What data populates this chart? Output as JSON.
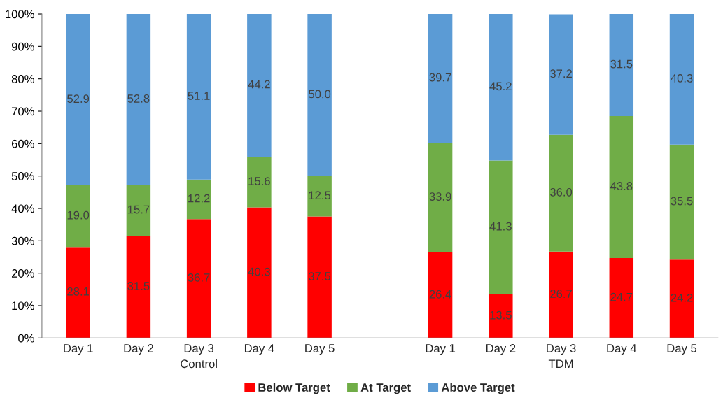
{
  "chart_data": {
    "type": "bar",
    "stacked": true,
    "categories": [
      "Day 1",
      "Day 2",
      "Day 3",
      "Day 4",
      "Day 5",
      null,
      "Day 1",
      "Day 2",
      "Day 3",
      "Day 4",
      "Day 5"
    ],
    "series": [
      {
        "name": "Below Target",
        "color": "#ff0000",
        "values": [
          28.1,
          31.5,
          36.7,
          40.3,
          37.5,
          null,
          26.4,
          13.5,
          26.7,
          24.7,
          24.2
        ],
        "value_labels": [
          "28.1",
          "31.5",
          "36.7",
          "40.3",
          "37.5",
          null,
          "26.4",
          "13.5",
          "26.7",
          "24.7",
          "24.2"
        ]
      },
      {
        "name": "At Target",
        "color": "#70ad47",
        "values": [
          19.0,
          15.7,
          12.2,
          15.6,
          12.5,
          null,
          33.9,
          41.3,
          36.0,
          43.8,
          35.5
        ],
        "value_labels": [
          "19.0",
          "15.7",
          "12.2",
          "15.6",
          "12.5",
          null,
          "33.9",
          "41.3",
          "36.0",
          "43.8",
          "35.5"
        ]
      },
      {
        "name": "Above Target",
        "color": "#5b9bd5",
        "values": [
          52.9,
          52.8,
          51.1,
          44.2,
          50.0,
          null,
          39.7,
          45.2,
          37.2,
          31.5,
          40.3
        ],
        "value_labels": [
          "52.9",
          "52.8",
          "51.1",
          "44.2",
          "50.0",
          null,
          "39.7",
          "45.2",
          "37.2",
          "31.5",
          "40.3"
        ]
      }
    ],
    "ylim": [
      0,
      100
    ],
    "yticks": [
      {
        "value": 0,
        "label": "0%"
      },
      {
        "value": 10,
        "label": "10%"
      },
      {
        "value": 20,
        "label": "20%"
      },
      {
        "value": 30,
        "label": "30%"
      },
      {
        "value": 40,
        "label": "40%"
      },
      {
        "value": 50,
        "label": "50%"
      },
      {
        "value": 60,
        "label": "60%"
      },
      {
        "value": 70,
        "label": "70%"
      },
      {
        "value": 80,
        "label": "80%"
      },
      {
        "value": 90,
        "label": "90%"
      },
      {
        "value": 100,
        "label": "100%"
      }
    ],
    "legend": "bottom",
    "grid": false,
    "annotations": [
      "Control",
      "TDM"
    ]
  }
}
